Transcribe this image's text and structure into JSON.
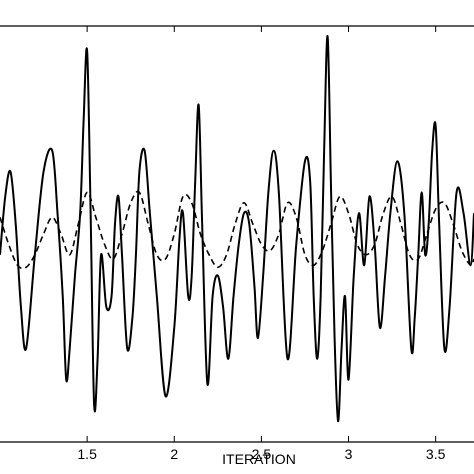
{
  "chart_data": {
    "type": "line",
    "title": "",
    "xlabel": "ITERATION",
    "ylabel": "",
    "xlim": [
      1.0,
      3.72
    ],
    "ylim": [
      -1.0,
      1.0
    ],
    "grid": false,
    "xticks": [
      1.5,
      2,
      2.5,
      3,
      3.5
    ],
    "xtick_labels": [
      "1.5",
      "2",
      "2.5",
      "3",
      "3.5"
    ],
    "series": [
      {
        "style": "solid",
        "color": "#000000",
        "x": [
          1.0,
          1.03,
          1.06,
          1.09,
          1.12,
          1.15,
          1.2,
          1.25,
          1.3,
          1.33,
          1.36,
          1.38,
          1.4,
          1.43,
          1.46,
          1.48,
          1.5,
          1.52,
          1.54,
          1.56,
          1.58,
          1.61,
          1.64,
          1.66,
          1.68,
          1.7,
          1.73,
          1.76,
          1.78,
          1.8,
          1.83,
          1.86,
          1.9,
          1.95,
          2.0,
          2.03,
          2.05,
          2.08,
          2.1,
          2.12,
          2.14,
          2.16,
          2.19,
          2.22,
          2.25,
          2.28,
          2.31,
          2.34,
          2.37,
          2.4,
          2.43,
          2.46,
          2.48,
          2.51,
          2.54,
          2.57,
          2.6,
          2.65,
          2.7,
          2.75,
          2.78,
          2.8,
          2.82,
          2.84,
          2.86,
          2.88,
          2.9,
          2.92,
          2.94,
          2.96,
          2.98,
          3.0,
          3.03,
          3.06,
          3.09,
          3.12,
          3.15,
          3.18,
          3.21,
          3.24,
          3.28,
          3.32,
          3.36,
          3.38,
          3.4,
          3.42,
          3.44,
          3.46,
          3.48,
          3.5,
          3.52,
          3.55,
          3.58,
          3.62,
          3.66,
          3.7,
          3.72
        ],
        "y": [
          -0.1,
          0.18,
          0.3,
          0.05,
          -0.35,
          -0.55,
          -0.1,
          0.3,
          0.4,
          0.1,
          -0.3,
          -0.7,
          -0.55,
          -0.2,
          0.1,
          0.55,
          0.88,
          0.1,
          -0.82,
          -0.6,
          -0.1,
          -0.35,
          -0.3,
          0.05,
          0.18,
          -0.1,
          -0.55,
          -0.4,
          -0.1,
          0.3,
          0.4,
          0.1,
          -0.3,
          -0.78,
          -0.45,
          -0.02,
          0.1,
          -0.3,
          -0.2,
          0.25,
          0.62,
          0.05,
          -0.72,
          -0.3,
          -0.2,
          -0.35,
          -0.6,
          -0.3,
          -0.05,
          0.1,
          0.05,
          -0.25,
          -0.5,
          -0.2,
          0.2,
          0.4,
          0.2,
          -0.6,
          -0.05,
          0.35,
          0.25,
          -0.3,
          -0.6,
          -0.3,
          0.4,
          0.95,
          0.2,
          -0.5,
          -0.9,
          -0.55,
          -0.3,
          -0.7,
          -0.2,
          0.1,
          -0.15,
          0.18,
          -0.05,
          -0.45,
          -0.2,
          0.1,
          0.35,
          0.1,
          -0.55,
          -0.4,
          -0.1,
          0.2,
          -0.1,
          0.05,
          0.4,
          0.52,
          0.05,
          -0.55,
          -0.35,
          0.2,
          0.1,
          -0.15,
          0.1
        ]
      },
      {
        "style": "dashed",
        "color": "#000000",
        "x": [
          1.0,
          1.05,
          1.1,
          1.15,
          1.2,
          1.25,
          1.3,
          1.35,
          1.4,
          1.45,
          1.5,
          1.55,
          1.6,
          1.65,
          1.7,
          1.75,
          1.8,
          1.85,
          1.9,
          1.95,
          2.0,
          2.05,
          2.1,
          2.15,
          2.2,
          2.25,
          2.3,
          2.35,
          2.4,
          2.45,
          2.5,
          2.55,
          2.6,
          2.65,
          2.7,
          2.75,
          2.8,
          2.85,
          2.9,
          2.95,
          3.0,
          3.05,
          3.1,
          3.15,
          3.2,
          3.25,
          3.3,
          3.35,
          3.4,
          3.45,
          3.5,
          3.55,
          3.6,
          3.65,
          3.7,
          3.72
        ],
        "y": [
          0.08,
          -0.05,
          -0.15,
          -0.16,
          -0.1,
          0.0,
          0.08,
          0.0,
          -0.1,
          0.05,
          0.2,
          0.08,
          -0.05,
          -0.12,
          0.0,
          0.15,
          0.2,
          0.05,
          -0.1,
          -0.12,
          0.0,
          0.18,
          0.15,
          0.0,
          -0.1,
          -0.16,
          -0.1,
          0.05,
          0.15,
          0.05,
          -0.05,
          -0.08,
          0.0,
          0.15,
          0.08,
          -0.1,
          -0.15,
          -0.08,
          0.05,
          0.18,
          0.1,
          -0.05,
          -0.1,
          -0.05,
          0.1,
          0.18,
          0.05,
          -0.1,
          -0.12,
          0.0,
          0.12,
          0.15,
          0.05,
          -0.08,
          -0.15,
          -0.12
        ]
      }
    ]
  }
}
